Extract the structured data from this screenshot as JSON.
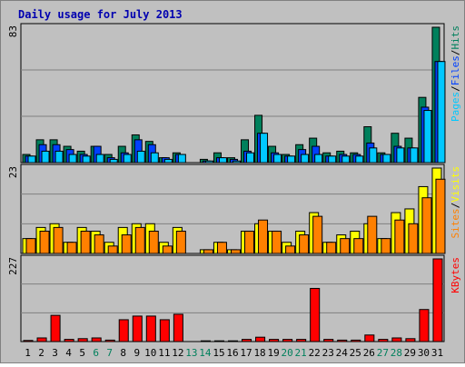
{
  "chart_data": [
    {
      "type": "bar",
      "title": "Daily usage for July 2013",
      "ymax_label": "83",
      "side_label": [
        "Pages",
        "Files",
        "Hits"
      ],
      "categories": [
        "1",
        "2",
        "3",
        "4",
        "5",
        "6",
        "7",
        "8",
        "9",
        "10",
        "11",
        "12",
        "13",
        "14",
        "15",
        "16",
        "17",
        "18",
        "19",
        "20",
        "21",
        "22",
        "23",
        "24",
        "25",
        "26",
        "27",
        "28",
        "29",
        "30",
        "31"
      ],
      "weekend_days": [
        "6",
        "7",
        "13",
        "14",
        "20",
        "21",
        "27",
        "28"
      ],
      "ylim": [
        0,
        83
      ],
      "series": [
        {
          "name": "Hits",
          "values": [
            5,
            14,
            14,
            10,
            7,
            10,
            5,
            10,
            17,
            13,
            3,
            6,
            0,
            2,
            6,
            3,
            14,
            29,
            10,
            5,
            11,
            15,
            6,
            7,
            6,
            22,
            6,
            18,
            15,
            40,
            83
          ]
        },
        {
          "name": "Files",
          "values": [
            4,
            11,
            11,
            8,
            5,
            10,
            3,
            6,
            14,
            11,
            3,
            5,
            0,
            1,
            3,
            2,
            7,
            18,
            6,
            4,
            8,
            10,
            4,
            5,
            5,
            12,
            5,
            10,
            9,
            34,
            62
          ]
        },
        {
          "name": "Pages",
          "values": [
            4,
            7,
            7,
            5,
            4,
            5,
            2,
            5,
            7,
            6,
            2,
            5,
            0,
            1,
            3,
            1,
            6,
            18,
            5,
            4,
            5,
            5,
            4,
            4,
            4,
            9,
            5,
            9,
            9,
            32,
            62
          ]
        }
      ],
      "colors": {
        "Hits": "#00805c",
        "Files": "#0040ff",
        "Pages": "#00c8ff"
      }
    },
    {
      "type": "bar",
      "ymax_label": "23",
      "side_label": [
        "Sites",
        "Visits"
      ],
      "ylim": [
        0,
        23
      ],
      "series": [
        {
          "name": "Visits",
          "values": [
            4,
            7,
            8,
            3,
            7,
            6,
            3,
            7,
            8,
            8,
            3,
            7,
            0,
            1,
            3,
            1,
            6,
            8,
            6,
            3,
            6,
            11,
            3,
            5,
            6,
            8,
            4,
            11,
            12,
            18,
            23
          ]
        },
        {
          "name": "Sites",
          "values": [
            4,
            6,
            7,
            3,
            6,
            5,
            2,
            5,
            7,
            6,
            2,
            6,
            0,
            1,
            3,
            1,
            6,
            9,
            6,
            2,
            5,
            10,
            3,
            4,
            4,
            10,
            4,
            9,
            8,
            15,
            20
          ]
        }
      ],
      "colors": {
        "Visits": "#ffff00",
        "Sites": "#ff8000"
      }
    },
    {
      "type": "bar",
      "ymax_label": "227",
      "side_label": [
        "KBytes"
      ],
      "ylim": [
        0,
        227
      ],
      "series": [
        {
          "name": "KBytes",
          "values": [
            3,
            10,
            72,
            6,
            8,
            10,
            4,
            60,
            70,
            70,
            60,
            75,
            0,
            2,
            2,
            2,
            6,
            12,
            6,
            6,
            6,
            146,
            6,
            4,
            4,
            18,
            6,
            10,
            8,
            88,
            227
          ]
        }
      ],
      "colors": {
        "KBytes": "#ff0000"
      }
    }
  ]
}
